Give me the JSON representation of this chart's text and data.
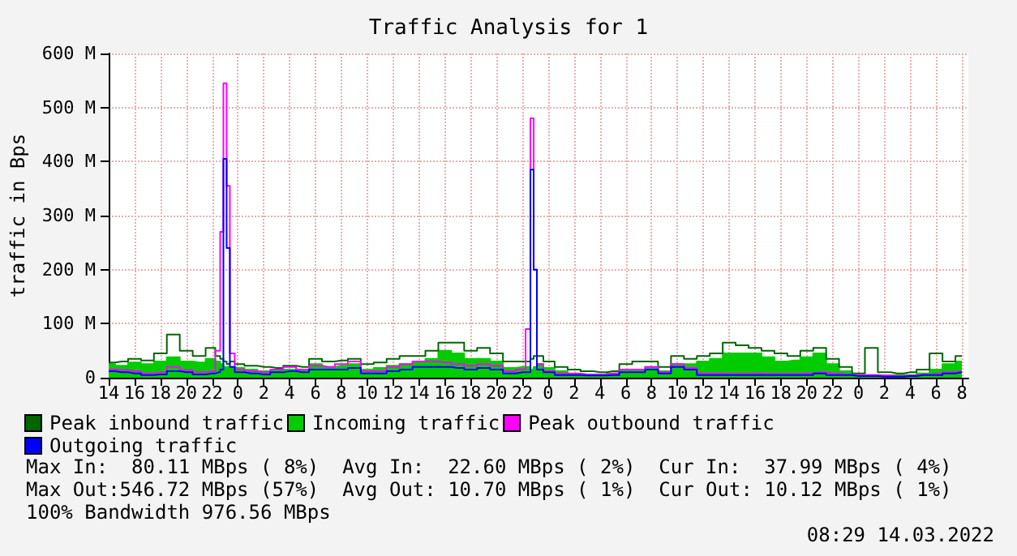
{
  "chart_data": {
    "type": "step",
    "title": "Traffic Analysis for 1",
    "ylabel": "traffic in Bps",
    "x": [
      "2022-03-11T14:00",
      "2022-03-11T15:00",
      "2022-03-11T16:00",
      "2022-03-11T17:00",
      "2022-03-11T18:00",
      "2022-03-11T19:00",
      "2022-03-11T20:00",
      "2022-03-11T21:00",
      "2022-03-11T22:00",
      "2022-03-11T22:30",
      "2022-03-11T22:45",
      "2022-03-11T23:00",
      "2022-03-11T23:15",
      "2022-03-11T23:30",
      "2022-03-12T00:00",
      "2022-03-12T01:00",
      "2022-03-12T02:00",
      "2022-03-12T03:00",
      "2022-03-12T04:00",
      "2022-03-12T05:00",
      "2022-03-12T06:00",
      "2022-03-12T07:00",
      "2022-03-12T08:00",
      "2022-03-12T09:00",
      "2022-03-12T10:00",
      "2022-03-12T11:00",
      "2022-03-12T12:00",
      "2022-03-12T13:00",
      "2022-03-12T14:00",
      "2022-03-12T15:00",
      "2022-03-12T16:00",
      "2022-03-12T17:00",
      "2022-03-12T18:00",
      "2022-03-12T19:00",
      "2022-03-12T20:00",
      "2022-03-12T21:00",
      "2022-03-12T22:00",
      "2022-03-12T22:30",
      "2022-03-12T22:45",
      "2022-03-12T23:00",
      "2022-03-12T23:15",
      "2022-03-13T00:00",
      "2022-03-13T01:00",
      "2022-03-13T02:00",
      "2022-03-13T03:00",
      "2022-03-13T04:00",
      "2022-03-13T05:00",
      "2022-03-13T06:00",
      "2022-03-13T07:00",
      "2022-03-13T08:00",
      "2022-03-13T09:00",
      "2022-03-13T10:00",
      "2022-03-13T11:00",
      "2022-03-13T12:00",
      "2022-03-13T13:00",
      "2022-03-13T14:00",
      "2022-03-13T15:00",
      "2022-03-13T16:00",
      "2022-03-13T17:00",
      "2022-03-13T18:00",
      "2022-03-13T19:00",
      "2022-03-13T20:00",
      "2022-03-13T21:00",
      "2022-03-13T22:00",
      "2022-03-13T23:00",
      "2022-03-14T00:00",
      "2022-03-14T01:00",
      "2022-03-14T02:00",
      "2022-03-14T03:00",
      "2022-03-14T04:00",
      "2022-03-14T05:00",
      "2022-03-14T06:00",
      "2022-03-14T07:00",
      "2022-03-14T08:00"
    ],
    "series": [
      {
        "name": "Peak inbound traffic",
        "color": "#006600",
        "values": [
          28,
          30,
          35,
          32,
          45,
          80,
          50,
          40,
          55,
          40,
          35,
          30,
          25,
          30,
          25,
          22,
          20,
          18,
          22,
          20,
          35,
          30,
          32,
          35,
          25,
          28,
          35,
          40,
          40,
          50,
          65,
          65,
          50,
          55,
          45,
          30,
          30,
          30,
          35,
          40,
          40,
          30,
          20,
          15,
          12,
          10,
          12,
          25,
          30,
          30,
          20,
          40,
          35,
          40,
          45,
          65,
          60,
          55,
          50,
          45,
          40,
          50,
          55,
          35,
          20,
          8,
          55,
          10,
          8,
          10,
          15,
          45,
          30,
          40
        ]
      },
      {
        "name": "Incoming traffic",
        "type": "area",
        "color": "#00cc00",
        "values": [
          25,
          22,
          28,
          25,
          30,
          38,
          30,
          28,
          35,
          30,
          25,
          20,
          20,
          20,
          18,
          15,
          12,
          12,
          15,
          15,
          25,
          20,
          22,
          25,
          15,
          18,
          22,
          25,
          28,
          35,
          50,
          45,
          35,
          35,
          30,
          18,
          20,
          20,
          15,
          20,
          25,
          18,
          12,
          8,
          6,
          5,
          8,
          15,
          15,
          20,
          12,
          25,
          25,
          30,
          35,
          45,
          45,
          45,
          38,
          30,
          32,
          38,
          45,
          25,
          12,
          5,
          5,
          4,
          5,
          5,
          8,
          15,
          25,
          30
        ]
      },
      {
        "name": "Peak outbound traffic",
        "color": "#ff00ff",
        "values": [
          15,
          14,
          12,
          8,
          10,
          20,
          14,
          10,
          12,
          50,
          270,
          545,
          355,
          45,
          15,
          12,
          10,
          15,
          20,
          15,
          22,
          20,
          25,
          30,
          12,
          12,
          20,
          25,
          30,
          30,
          28,
          25,
          22,
          25,
          22,
          12,
          15,
          90,
          480,
          200,
          25,
          12,
          8,
          7,
          6,
          6,
          8,
          15,
          15,
          20,
          10,
          25,
          18,
          8,
          8,
          7,
          7,
          8,
          7,
          7,
          7,
          8,
          10,
          8,
          6,
          5,
          5,
          4,
          3,
          4,
          6,
          7,
          10,
          12
        ]
      },
      {
        "name": "Outgoing traffic",
        "color": "#0000ff",
        "values": [
          12,
          10,
          8,
          5,
          6,
          12,
          10,
          6,
          8,
          10,
          15,
          405,
          240,
          20,
          10,
          8,
          6,
          10,
          12,
          10,
          15,
          15,
          15,
          18,
          8,
          8,
          12,
          15,
          20,
          20,
          20,
          18,
          15,
          18,
          15,
          8,
          10,
          10,
          385,
          200,
          15,
          10,
          5,
          5,
          4,
          4,
          5,
          10,
          10,
          15,
          8,
          20,
          15,
          5,
          5,
          5,
          5,
          5,
          5,
          5,
          5,
          5,
          8,
          5,
          5,
          3,
          3,
          2,
          2,
          3,
          5,
          5,
          8,
          10
        ]
      }
    ],
    "xlim": [
      "2022-03-11T14:00",
      "2022-03-14T08:30"
    ],
    "xticks": [
      {
        "value": "2022-03-11T14:00",
        "label": "14"
      },
      {
        "value": "2022-03-11T16:00",
        "label": "16"
      },
      {
        "value": "2022-03-11T18:00",
        "label": "18"
      },
      {
        "value": "2022-03-11T20:00",
        "label": "20"
      },
      {
        "value": "2022-03-11T22:00",
        "label": "22"
      },
      {
        "value": "2022-03-12T00:00",
        "label": "0"
      },
      {
        "value": "2022-03-12T02:00",
        "label": "2"
      },
      {
        "value": "2022-03-12T04:00",
        "label": "4"
      },
      {
        "value": "2022-03-12T06:00",
        "label": "6"
      },
      {
        "value": "2022-03-12T08:00",
        "label": "8"
      },
      {
        "value": "2022-03-12T10:00",
        "label": "10"
      },
      {
        "value": "2022-03-12T12:00",
        "label": "12"
      },
      {
        "value": "2022-03-12T14:00",
        "label": "14"
      },
      {
        "value": "2022-03-12T16:00",
        "label": "16"
      },
      {
        "value": "2022-03-12T18:00",
        "label": "18"
      },
      {
        "value": "2022-03-12T20:00",
        "label": "20"
      },
      {
        "value": "2022-03-12T22:00",
        "label": "22"
      },
      {
        "value": "2022-03-13T00:00",
        "label": "0"
      },
      {
        "value": "2022-03-13T02:00",
        "label": "2"
      },
      {
        "value": "2022-03-13T04:00",
        "label": "4"
      },
      {
        "value": "2022-03-13T06:00",
        "label": "6"
      },
      {
        "value": "2022-03-13T08:00",
        "label": "8"
      },
      {
        "value": "2022-03-13T10:00",
        "label": "10"
      },
      {
        "value": "2022-03-13T12:00",
        "label": "12"
      },
      {
        "value": "2022-03-13T14:00",
        "label": "14"
      },
      {
        "value": "2022-03-13T16:00",
        "label": "16"
      },
      {
        "value": "2022-03-13T18:00",
        "label": "18"
      },
      {
        "value": "2022-03-13T20:00",
        "label": "20"
      },
      {
        "value": "2022-03-13T22:00",
        "label": "22"
      },
      {
        "value": "2022-03-14T00:00",
        "label": "0"
      },
      {
        "value": "2022-03-14T02:00",
        "label": "2"
      },
      {
        "value": "2022-03-14T04:00",
        "label": "4"
      },
      {
        "value": "2022-03-14T06:00",
        "label": "6"
      },
      {
        "value": "2022-03-14T08:00",
        "label": "8"
      }
    ],
    "ylim": [
      0,
      600
    ],
    "yticks": [
      0,
      {
        "value": 100,
        "label": "100 M"
      },
      {
        "value": 200,
        "label": "200 M"
      },
      {
        "value": 300,
        "label": "300 M"
      },
      {
        "value": 400,
        "label": "400 M"
      },
      {
        "value": 500,
        "label": "500 M"
      },
      {
        "value": 600,
        "label": "600 M"
      }
    ],
    "grid": true,
    "legend": "bottom left",
    "marker": "none",
    "line_style": "solid",
    "annotations": [
      "Max In:  80.11 MBps ( 8%)  Avg In:  22.60 MBps ( 2%)  Cur In:  37.99 MBps ( 4%)",
      "Max Out:546.72 MBps (57%)  Avg Out: 10.70 MBps ( 1%)  Cur Out: 10.12 MBps ( 1%)",
      "100% Bandwidth 976.56 MBps",
      "08:29 14.03.2022"
    ]
  }
}
